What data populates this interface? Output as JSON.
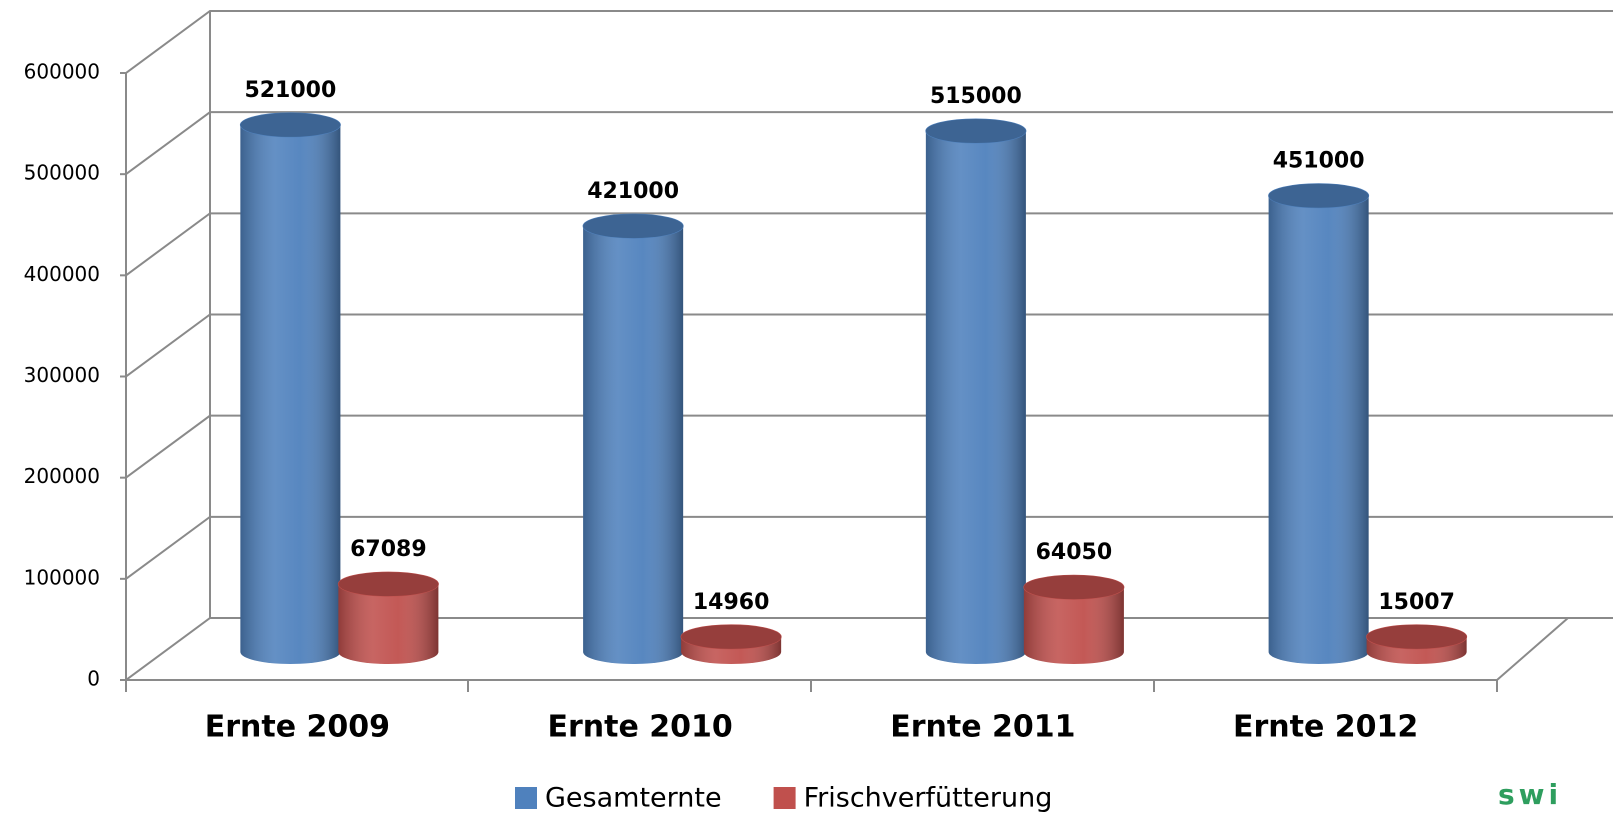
{
  "chart_data": {
    "type": "bar3d-cylinder",
    "categories": [
      "Ernte 2009",
      "Ernte 2010",
      "Ernte 2011",
      "Ernte 2012"
    ],
    "series": [
      {
        "name": "Gesamternte",
        "color": "#4f81bd",
        "values": [
          521000,
          421000,
          515000,
          451000
        ]
      },
      {
        "name": "Frischverfütterung",
        "color": "#c0504d",
        "values": [
          67089,
          14960,
          64050,
          15007
        ]
      }
    ],
    "ylim": [
      0,
      600000
    ],
    "yticks": [
      0,
      100000,
      200000,
      300000,
      400000,
      500000,
      600000
    ],
    "grid": true,
    "legend": "bottom",
    "logo_text": "swi"
  }
}
